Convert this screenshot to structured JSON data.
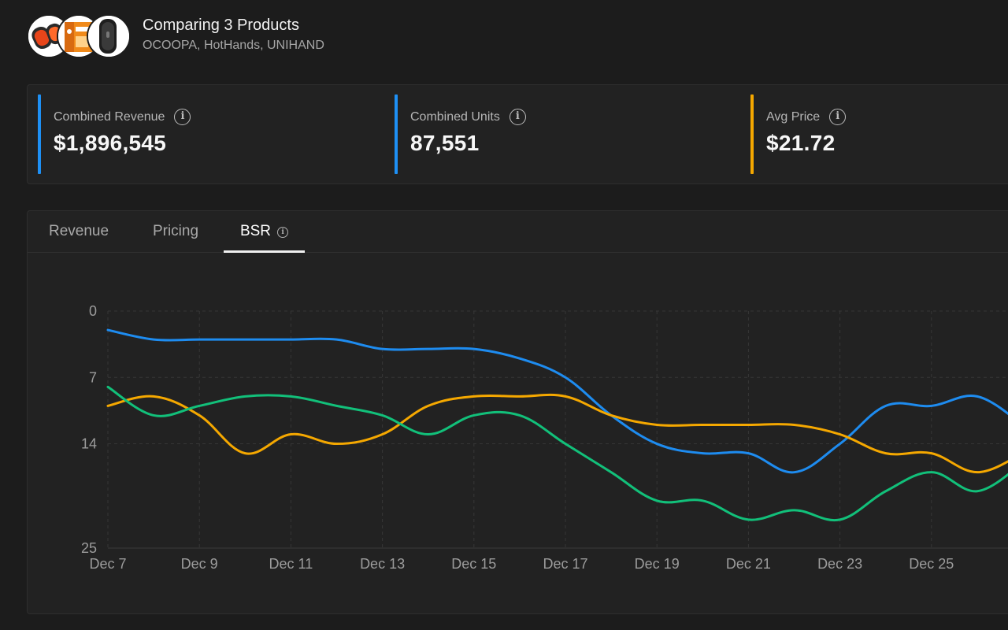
{
  "header": {
    "title": "Comparing 3 Products",
    "subtitle": "OCOOPA, HotHands, UNIHAND",
    "avatars": [
      "product-image-ocoopa",
      "product-image-hothands",
      "product-image-unihand"
    ]
  },
  "stats": [
    {
      "label": "Combined Revenue",
      "value": "$1,896,545",
      "color": "#1e90f5",
      "icon": "info-icon"
    },
    {
      "label": "Combined Units",
      "value": "87,551",
      "color": "#1e90f5",
      "icon": "info-icon"
    },
    {
      "label": "Avg Price",
      "value": "$21.72",
      "color": "#f5a800",
      "icon": "info-icon"
    }
  ],
  "tabs": [
    {
      "label": "Revenue",
      "active": false
    },
    {
      "label": "Pricing",
      "active": false
    },
    {
      "label": "BSR",
      "active": true,
      "icon": "info-icon"
    }
  ],
  "chart_data": {
    "type": "line",
    "y_inverted": true,
    "ylim": [
      0,
      25
    ],
    "yticks": [
      "0",
      "7",
      "14",
      "25"
    ],
    "xticks": [
      "Dec 7",
      "Dec 9",
      "Dec 11",
      "Dec 13",
      "Dec 15",
      "Dec 17",
      "Dec 19",
      "Dec 21",
      "Dec 23",
      "Dec 25",
      "D"
    ],
    "x": [
      "Dec 7",
      "Dec 8",
      "Dec 9",
      "Dec 10",
      "Dec 11",
      "Dec 12",
      "Dec 13",
      "Dec 14",
      "Dec 15",
      "Dec 16",
      "Dec 17",
      "Dec 18",
      "Dec 19",
      "Dec 20",
      "Dec 21",
      "Dec 22",
      "Dec 23",
      "Dec 24",
      "Dec 25",
      "Dec 26",
      "Dec 27"
    ],
    "grid": true,
    "series": [
      {
        "color": "#1e8cf0",
        "values": [
          2,
          3,
          3,
          3,
          3,
          3,
          4,
          4,
          4,
          5,
          7,
          11,
          14,
          15,
          15,
          17,
          14,
          10,
          10,
          9,
          12
        ]
      },
      {
        "color": "#f5a800",
        "values": [
          10,
          9,
          11,
          15,
          13,
          14,
          13,
          10,
          9,
          9,
          9,
          11,
          12,
          12,
          12,
          12,
          13,
          15,
          15,
          17,
          15
        ]
      },
      {
        "color": "#12c07a",
        "values": [
          8,
          11,
          10,
          9,
          9,
          10,
          11,
          13,
          11,
          11,
          14,
          17,
          20,
          20,
          22,
          21,
          22,
          19,
          17,
          19,
          16
        ]
      }
    ]
  }
}
